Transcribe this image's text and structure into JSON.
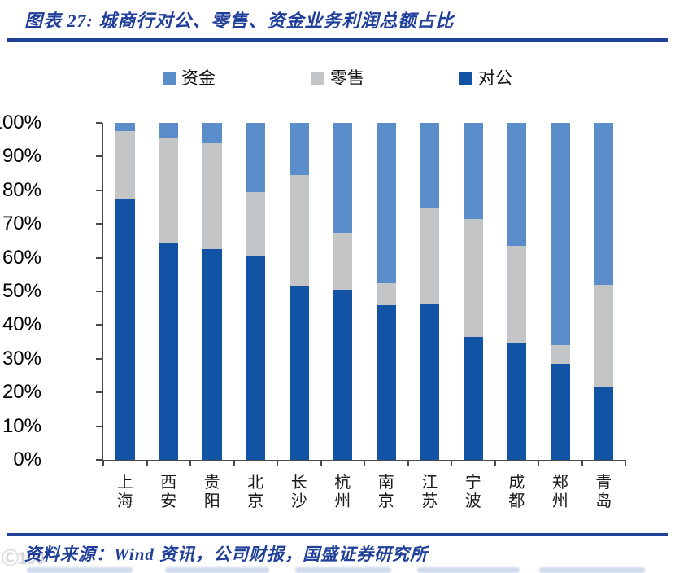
{
  "page": {
    "title": "图表 27:  城商行对公、零售、资金业务利润总额占比"
  },
  "footer": {
    "source": "资料来源：Wind 资讯，公司财报，国盛证券研究所",
    "watermark": "Ⓒ100"
  },
  "colors": {
    "accent_navy": "#21409A",
    "axis": "#4a4a4a",
    "series_corporate": "#1353A5",
    "series_retail": "#C4C5C7",
    "series_treasury": "#5B8DCB"
  },
  "chart_data": {
    "type": "bar",
    "stacked": true,
    "title": "城商行对公、零售、资金业务利润总额占比",
    "categories": [
      "上海",
      "西安",
      "贵阳",
      "北京",
      "长沙",
      "杭州",
      "南京",
      "江苏",
      "宁波",
      "成都",
      "郑州",
      "青岛"
    ],
    "series": [
      {
        "name": "对公",
        "color": "#1353A5",
        "values": [
          77.5,
          64.5,
          62.5,
          60.5,
          51.5,
          50.5,
          46.0,
          46.5,
          36.5,
          34.5,
          28.5,
          21.5
        ]
      },
      {
        "name": "零售",
        "color": "#C4C5C7",
        "values": [
          20.0,
          31.0,
          31.5,
          19.0,
          33.0,
          17.0,
          6.5,
          28.5,
          35.0,
          29.0,
          5.5,
          30.5
        ]
      },
      {
        "name": "资金",
        "color": "#5B8DCB",
        "values": [
          2.5,
          4.5,
          6.0,
          20.5,
          15.5,
          32.5,
          47.5,
          25.0,
          28.5,
          36.5,
          66.0,
          48.0
        ]
      }
    ],
    "legend": [
      {
        "label": "资金",
        "color": "#5B8DCB"
      },
      {
        "label": "零售",
        "color": "#C4C5C7"
      },
      {
        "label": "对公",
        "color": "#1353A5"
      }
    ],
    "legend_position": "top",
    "yticks": [
      "100%",
      "90%",
      "80%",
      "70%",
      "60%",
      "50%",
      "40%",
      "30%",
      "20%",
      "10%",
      "0%"
    ],
    "ylim": [
      0,
      100
    ],
    "unit": "%",
    "grid": false
  }
}
